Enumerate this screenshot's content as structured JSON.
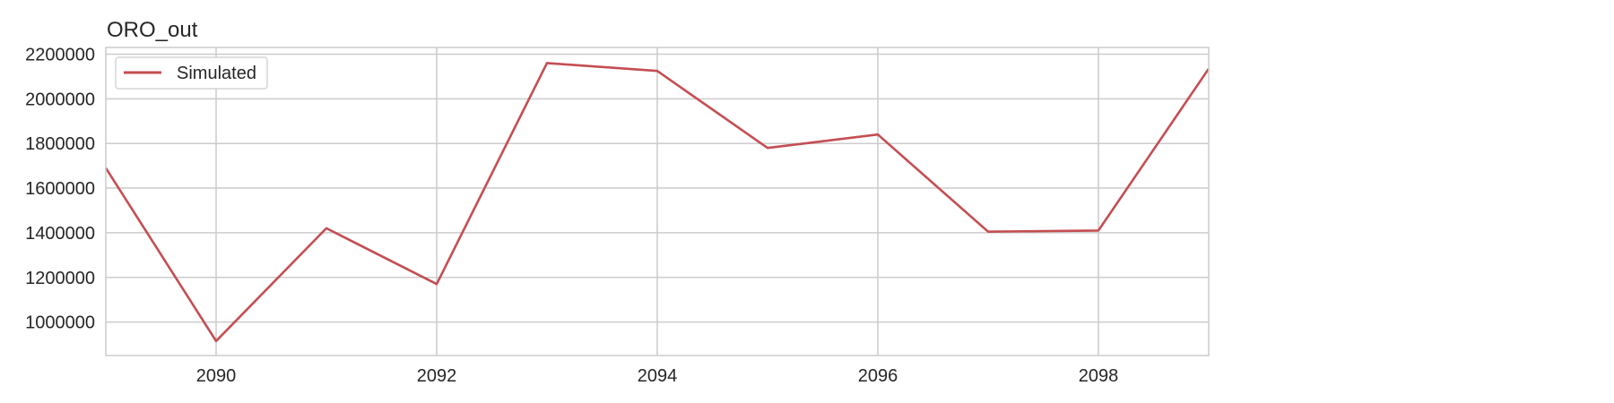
{
  "chart_data": {
    "type": "line",
    "title": "ORO_out",
    "xlabel": "",
    "ylabel": "",
    "x": [
      2089,
      2090,
      2091,
      2092,
      2093,
      2094,
      2095,
      2096,
      2097,
      2098,
      2099
    ],
    "series": [
      {
        "name": "Simulated",
        "color": "#c44e52",
        "values": [
          1690000,
          915000,
          1420000,
          1170000,
          2160000,
          2125000,
          1780000,
          1840000,
          1405000,
          1410000,
          2135000
        ]
      }
    ],
    "xlim": [
      2089,
      2099
    ],
    "ylim": [
      850000,
      2230000
    ],
    "x_ticks": [
      2090,
      2092,
      2094,
      2096,
      2098
    ],
    "x_tick_labels": [
      "2090",
      "2092",
      "2094",
      "2096",
      "2098"
    ],
    "y_ticks": [
      1000000,
      1200000,
      1400000,
      1600000,
      1800000,
      2000000,
      2200000
    ],
    "y_tick_labels": [
      "1000000",
      "1200000",
      "1400000",
      "1600000",
      "1800000",
      "2000000",
      "2200000"
    ],
    "grid": true,
    "legend_position": "top-left",
    "colors": {
      "grid": "#cccccc",
      "axes_edge": "#cccccc",
      "text": "#262626",
      "legend_edge": "#cccccc"
    }
  }
}
